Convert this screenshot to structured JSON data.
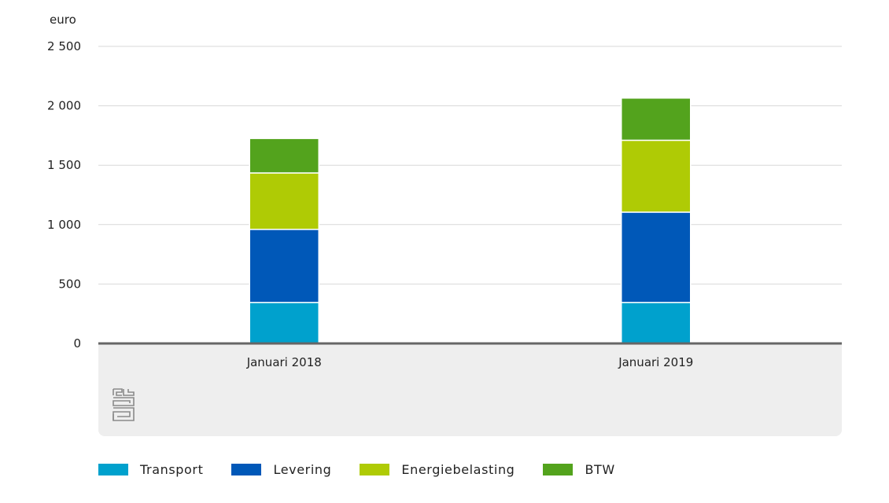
{
  "chart_data": {
    "type": "bar",
    "stacked": true,
    "title": "",
    "xlabel": "",
    "ylabel": "euro",
    "ylim": [
      0,
      2500
    ],
    "yticks": [
      0,
      500,
      1000,
      1500,
      2000,
      2500
    ],
    "ytick_labels": [
      "0",
      "500",
      "1 000",
      "1 500",
      "2 000",
      "2 500"
    ],
    "categories": [
      "Januari 2018",
      "Januari 2019"
    ],
    "series": [
      {
        "name": "Transport",
        "values": [
          345,
          345
        ],
        "color": "#00a1cd"
      },
      {
        "name": "Levering",
        "values": [
          615,
          760
        ],
        "color": "#0058b8"
      },
      {
        "name": "Energiebelasting",
        "values": [
          475,
          605
        ],
        "color": "#afcb05"
      },
      {
        "name": "BTW",
        "values": [
          290,
          355
        ],
        "color": "#53a31d"
      }
    ],
    "grid": true,
    "legend_position": "bottom-left",
    "colors": {
      "grid": "#d9d9d9",
      "axis": "#666666",
      "panel": "#eeeeee",
      "logo": "#8a8a8a"
    }
  }
}
